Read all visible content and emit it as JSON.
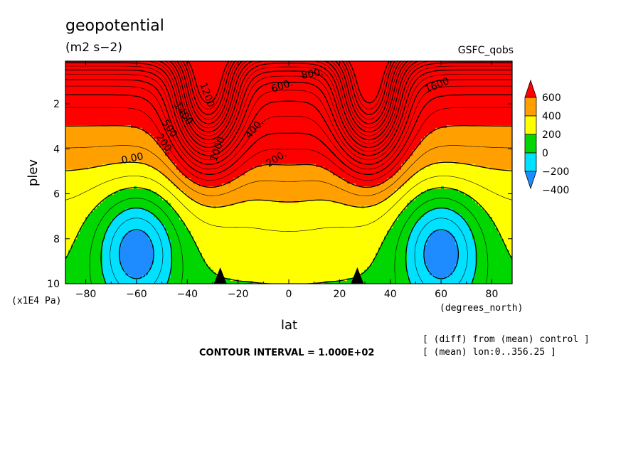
{
  "header": {
    "title": "geopotential",
    "units": "(m2 s−2)",
    "dataset": "GSFC_qobs"
  },
  "footer": {
    "contour_interval": "CONTOUR INTERVAL = 1.000E+02",
    "note_diff": "[ (diff) from (mean) control ]",
    "note_mean": "[ (mean) lon:0..356.25 ]"
  },
  "chart_data": {
    "type": "heatmap",
    "title": "geopotential",
    "subtitle": "(m2 s−2)",
    "xlabel": "lat",
    "xunit": "(degrees_north)",
    "ylabel": "plev",
    "yunit": "(x1E4 Pa)",
    "xlim": [
      -88,
      88
    ],
    "ylim": [
      0.1,
      10
    ],
    "y_inverted": true,
    "xticks": [
      -80,
      -60,
      -40,
      -20,
      0,
      20,
      40,
      60,
      80
    ],
    "yticks": [
      2,
      4,
      6,
      8,
      10
    ],
    "colorbar": {
      "levels": [
        -400,
        -200,
        0,
        200,
        400,
        600
      ],
      "colors": [
        "#1e8cff",
        "#00e0ff",
        "#00d600",
        "#ffff00",
        "#ffa000",
        "#ff0000"
      ]
    },
    "contour_labels": [
      "800.",
      "600.",
      "1400",
      "1200",
      "1600",
      "500.",
      "400.",
      "200.",
      "1000",
      "0.00",
      "200."
    ],
    "contour_interval": 100,
    "features": [
      {
        "name": "southern negative minimum",
        "lat": -60,
        "plev": 8.5,
        "value": -400
      },
      {
        "name": "northern negative minimum",
        "lat": 56,
        "plev": 9.0,
        "value": -400
      },
      {
        "name": "southern jet maximum",
        "lat": -34,
        "plev": 1.5,
        "value": 1600
      },
      {
        "name": "northern jet maximum",
        "lat": 34,
        "plev": 1.5,
        "value": 1600
      },
      {
        "name": "equatorial minimum",
        "lat": 0,
        "plev": 7.0,
        "value": 100
      }
    ]
  }
}
